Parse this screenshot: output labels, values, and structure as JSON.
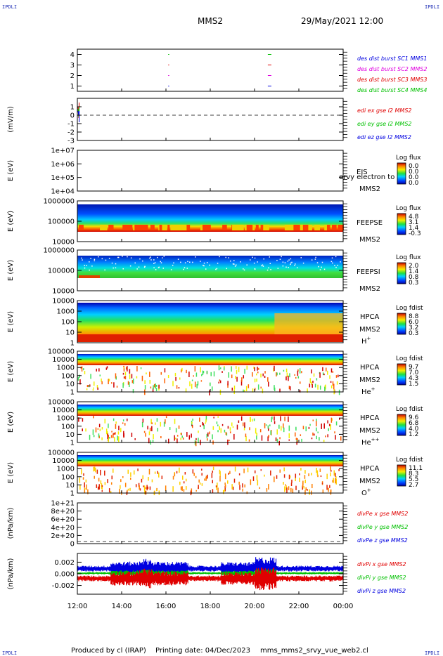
{
  "corner_marks": [
    "IPDLI",
    "IPDLI",
    "IPDLI",
    "IPDLI"
  ],
  "header": {
    "spacecraft": "MMS2",
    "datetime": "29/May/2021 12:00"
  },
  "footer": {
    "produced_by": "Produced by cl (IRAP)",
    "printing_date": "Printing date: 04/Dec/2023",
    "filename": "mms_mms2_srvy_vue_web2.cl"
  },
  "colors": {
    "red": "#e00000",
    "green": "#00c000",
    "blue": "#0000e0",
    "magenta": "#e000e0"
  },
  "chart_data": [
    {
      "type": "line",
      "id": "burst-flags",
      "ylabel": "",
      "ylim": [
        0.5,
        4.5
      ],
      "yticks": [
        1,
        2,
        3,
        4
      ],
      "series": [
        {
          "name": "des dist burst SC1 MMS1",
          "color": "#0000e0",
          "y": 1
        },
        {
          "name": "des dist burst SC2 MMS2",
          "color": "#e000e0",
          "y": 2
        },
        {
          "name": "des dist burst SC3 MMS3",
          "color": "#e00000",
          "y": 3
        },
        {
          "name": "des dist burst SC4 MMS4",
          "color": "#00c000",
          "y": 4
        }
      ],
      "burst_times_h": [
        16.1,
        20.6
      ]
    },
    {
      "type": "line",
      "id": "edi-e",
      "ylabel": "(mV/m)",
      "ylim": [
        -3,
        2
      ],
      "yticks": [
        1,
        0,
        -1,
        -2,
        -3
      ],
      "zero_line": true,
      "series": [
        {
          "name": "edi ex gse l2 MMS2",
          "color": "#e00000"
        },
        {
          "name": "edi ey gse l2 MMS2",
          "color": "#00c000"
        },
        {
          "name": "edi ez gse l2 MMS2",
          "color": "#0000e0"
        }
      ],
      "data_window_h": [
        12.0,
        12.08
      ]
    },
    {
      "type": "heatmap",
      "id": "eis",
      "ylabel": "E (eV)",
      "yticks": [
        "1e+07",
        "1e+06",
        "1e+05",
        "1e+04"
      ],
      "instrument": "EIS",
      "spacecraft": "MMS2",
      "overlay": "ervy electron to",
      "colorbar": {
        "title": "Log flux",
        "ticks": [
          "0.0",
          "0.0",
          "0.0",
          "0.0"
        ]
      },
      "empty": true
    },
    {
      "type": "heatmap",
      "id": "feepse",
      "ylabel": "E (eV)",
      "yticks": [
        "1000000",
        "100000",
        "10000"
      ],
      "instrument": "FEEPSE",
      "spacecraft": "MMS2",
      "colorbar": {
        "title": "Log flux",
        "ticks": [
          "4.8",
          "3.1",
          "1.4",
          "-0.3"
        ]
      }
    },
    {
      "type": "heatmap",
      "id": "feepsi",
      "ylabel": "E (eV)",
      "yticks": [
        "1000000",
        "100000",
        "10000"
      ],
      "instrument": "FEEPSI",
      "spacecraft": "MMS2",
      "colorbar": {
        "title": "Log flux",
        "ticks": [
          "2.0",
          "1.4",
          "0.8",
          "0.3"
        ]
      }
    },
    {
      "type": "heatmap",
      "id": "hpca-h",
      "ylabel": "E (eV)",
      "yticks": [
        "10000",
        "1000",
        "100",
        "10",
        "1"
      ],
      "instrument": "HPCA",
      "spacecraft": "MMS2",
      "species": "H",
      "charge": "+",
      "colorbar": {
        "title": "Log fdist",
        "ticks": [
          "8.8",
          "6.0",
          "3.2",
          "0.3"
        ]
      }
    },
    {
      "type": "heatmap",
      "id": "hpca-he",
      "ylabel": "E (eV)",
      "yticks": [
        "100000",
        "10000",
        "1000",
        "100",
        "10",
        "1"
      ],
      "instrument": "HPCA",
      "spacecraft": "MMS2",
      "species": "He",
      "charge": "+",
      "colorbar": {
        "title": "Log fdist",
        "ticks": [
          "9.7",
          "7.0",
          "4.3",
          "1.5"
        ]
      }
    },
    {
      "type": "heatmap",
      "id": "hpca-hepp",
      "ylabel": "E (eV)",
      "yticks": [
        "100000",
        "10000",
        "1000",
        "100",
        "10",
        "1"
      ],
      "instrument": "HPCA",
      "spacecraft": "MMS2",
      "species": "He",
      "charge": "++",
      "colorbar": {
        "title": "Log fdist",
        "ticks": [
          "9.6",
          "6.8",
          "4.0",
          "1.2"
        ]
      }
    },
    {
      "type": "heatmap",
      "id": "hpca-o",
      "ylabel": "E (eV)",
      "yticks": [
        "100000",
        "10000",
        "1000",
        "100",
        "10",
        "1"
      ],
      "instrument": "HPCA",
      "spacecraft": "MMS2",
      "species": "O",
      "charge": "+",
      "colorbar": {
        "title": "Log fdist",
        "ticks": [
          "11.1",
          "8.3",
          "5.5",
          "2.7"
        ]
      }
    },
    {
      "type": "line",
      "id": "divpe",
      "ylabel": "(nPa/km)",
      "ylim": [
        0,
        1e+21
      ],
      "yticks": [
        "1e+21",
        "8e+20",
        "6e+20",
        "4e+20",
        "2e+20",
        "0"
      ],
      "ytick_values": [
        1e+21,
        8e+20,
        6e+20,
        4e+20,
        2e+20,
        0
      ],
      "zero_line": true,
      "series": [
        {
          "name": "divPe x gse MMS2",
          "color": "#e00000"
        },
        {
          "name": "divPe y gse MMS2",
          "color": "#00c000"
        },
        {
          "name": "divPe z gse MMS2",
          "color": "#0000e0"
        }
      ]
    },
    {
      "type": "line",
      "id": "divpi",
      "ylabel": "(nPa/km)",
      "ylim": [
        -0.0035,
        0.0035
      ],
      "yticks": [
        "0.002",
        "0.000",
        "-0.002"
      ],
      "ytick_values": [
        0.002,
        0.0,
        -0.002
      ],
      "series": [
        {
          "name": "divPi x gse MMS2",
          "color": "#e00000"
        },
        {
          "name": "divPi y gse MMS2",
          "color": "#00c000"
        },
        {
          "name": "divPi z gse MMS2",
          "color": "#0000e0"
        }
      ]
    }
  ],
  "x_axis": {
    "ticks": [
      "12:00",
      "14:00",
      "16:00",
      "18:00",
      "20:00",
      "22:00",
      "00:00"
    ],
    "range_h": [
      12,
      24
    ]
  }
}
